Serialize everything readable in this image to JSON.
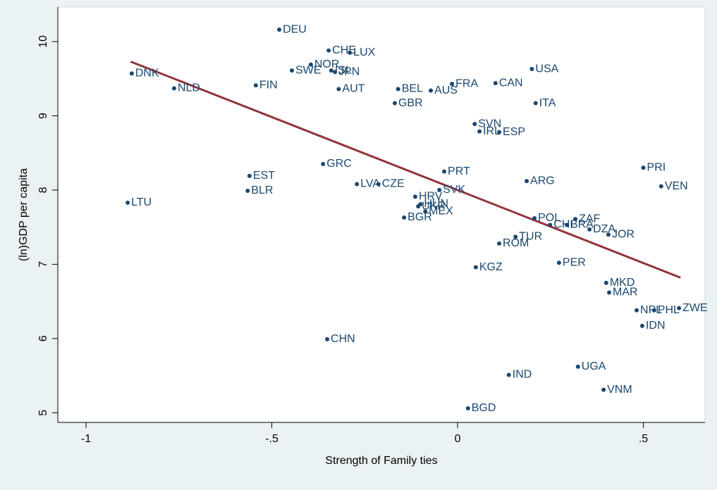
{
  "chart_data": {
    "type": "scatter",
    "x_label": "Strength of Family ties",
    "y_label": "(ln)GDP per capita",
    "xlim": [
      -1.076,
      0.666
    ],
    "ylim": [
      4.87,
      10.465
    ],
    "xticks": [
      -1,
      {
        "value": -0.5,
        "label": "-.5"
      },
      0,
      {
        "value": 0.5,
        "label": ".5"
      }
    ],
    "yticks": [
      5,
      6,
      7,
      8,
      9,
      10
    ],
    "color": "#1a476f",
    "point_labels": [
      "DEU",
      "CHE",
      "LUX",
      "NOR",
      "SWE",
      "ISL",
      "JPN",
      "DNK",
      "NLD",
      "FIN",
      "AUT",
      "BEL",
      "AUS",
      "FRA",
      "CAN",
      "USA",
      "GBR",
      "ITA",
      "SVN",
      "IRL",
      "ESP",
      "GRC",
      "PRT",
      "EST",
      "PRI",
      "VEN",
      "ARG",
      "LVA",
      "CZE",
      "BLR",
      "SVK",
      "LTU",
      "HRV",
      "HUN",
      "UKR",
      "MEX",
      "BGR",
      "POL",
      "ZAF",
      "CHL",
      "BRA",
      "DZA",
      "JOR",
      "TUR",
      "ROM",
      "PER",
      "KGZ",
      "MKD",
      "MAR",
      "NPL",
      "PHL",
      "ZWE",
      "IDN",
      "CHN",
      "UGA",
      "IND",
      "VNM",
      "BGD"
    ],
    "x": [
      -0.48,
      -0.347,
      -0.29,
      -0.395,
      -0.446,
      -0.34,
      -0.33,
      -0.877,
      -0.763,
      -0.543,
      -0.32,
      -0.16,
      -0.072,
      -0.015,
      0.102,
      0.2,
      -0.169,
      0.21,
      0.046,
      0.059,
      0.112,
      -0.362,
      -0.036,
      -0.56,
      0.5,
      0.548,
      0.186,
      -0.271,
      -0.213,
      -0.565,
      -0.049,
      -0.888,
      -0.114,
      -0.1,
      -0.106,
      -0.087,
      -0.144,
      0.207,
      0.317,
      0.249,
      0.294,
      0.355,
      0.406,
      0.156,
      0.112,
      0.273,
      0.049,
      0.4,
      0.408,
      0.482,
      0.529,
      0.596,
      0.497,
      -0.351,
      0.324,
      0.138,
      0.393,
      0.028
    ],
    "values": [
      10.16,
      9.88,
      9.85,
      9.69,
      9.61,
      9.61,
      9.59,
      9.57,
      9.37,
      9.41,
      9.36,
      9.36,
      9.34,
      9.43,
      9.44,
      9.63,
      9.17,
      9.17,
      8.89,
      8.79,
      8.78,
      8.35,
      8.25,
      8.19,
      8.3,
      8.05,
      8.12,
      8.08,
      8.08,
      7.99,
      8.0,
      7.83,
      7.91,
      7.81,
      7.78,
      7.71,
      7.63,
      7.62,
      7.61,
      7.53,
      7.53,
      7.47,
      7.4,
      7.37,
      7.28,
      7.02,
      6.96,
      6.75,
      6.62,
      6.38,
      6.38,
      6.41,
      6.17,
      5.99,
      5.62,
      5.51,
      5.31,
      5.06
    ],
    "fit_line": {
      "color": "#90353b",
      "x": [
        -0.88,
        0.6
      ],
      "values": [
        9.73,
        6.82
      ]
    }
  }
}
